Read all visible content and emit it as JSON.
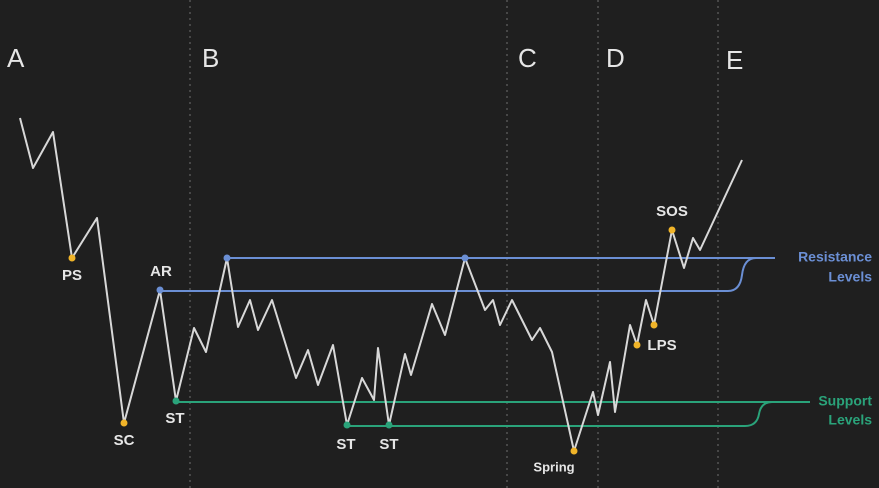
{
  "phases": [
    "A",
    "B",
    "C",
    "D",
    "E"
  ],
  "points": [
    {
      "label": "PS"
    },
    {
      "label": "SC"
    },
    {
      "label": "AR"
    },
    {
      "label": "ST"
    },
    {
      "label": "ST"
    },
    {
      "label": "ST"
    },
    {
      "label": "Spring"
    },
    {
      "label": "LPS"
    },
    {
      "label": "SOS"
    }
  ],
  "levels": {
    "resistance": [
      "Resistance",
      "Levels"
    ],
    "support": [
      "Support",
      "Levels"
    ]
  }
}
